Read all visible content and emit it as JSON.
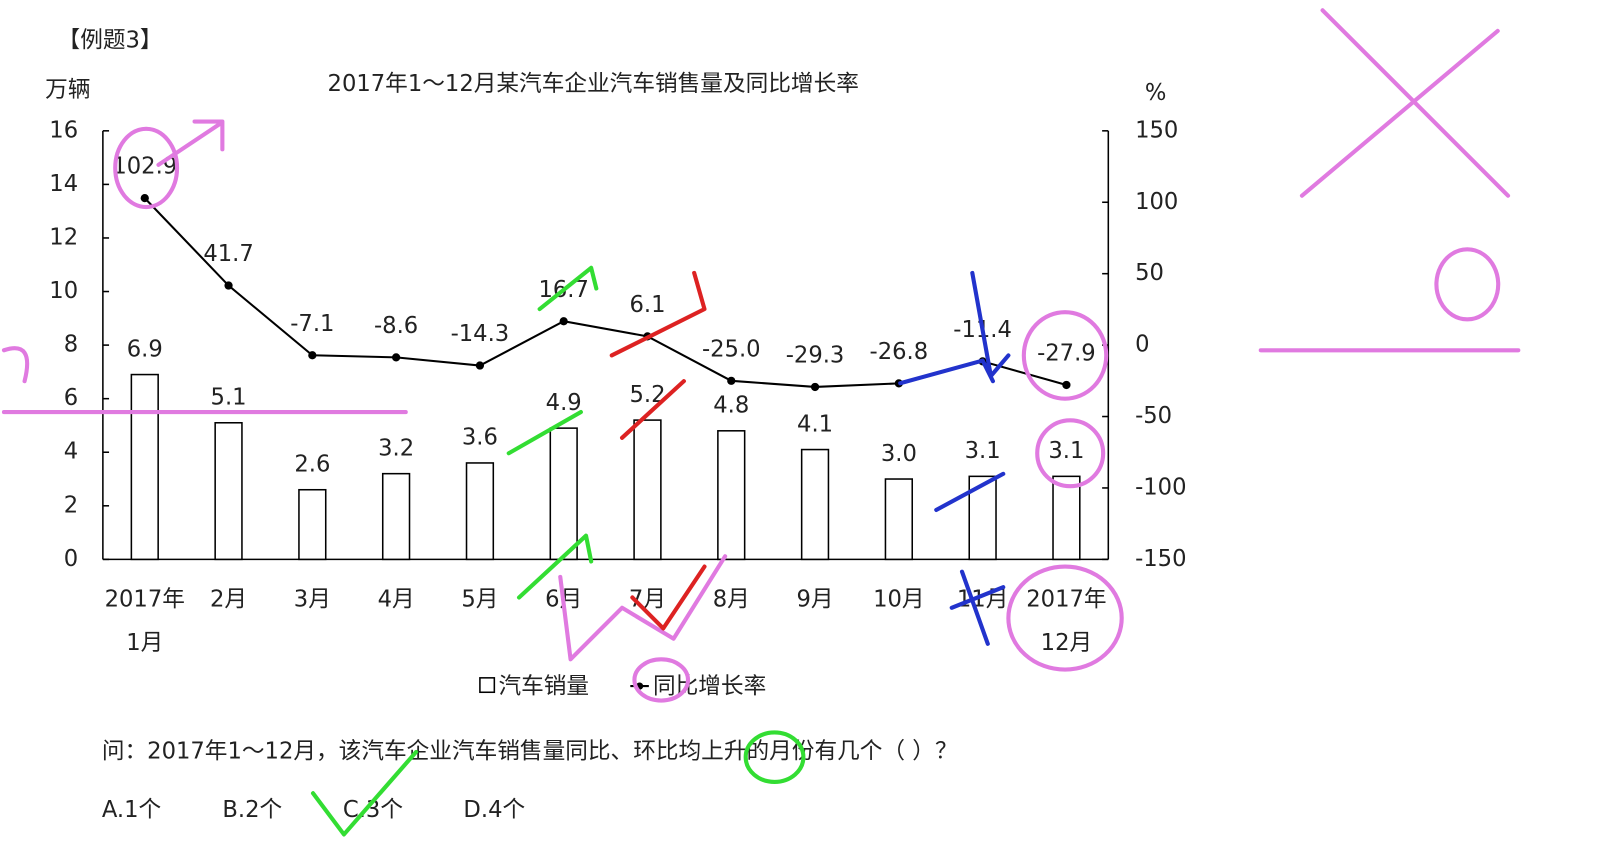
{
  "header": "【例题3】",
  "chart_data": {
    "type": "bar-line",
    "title": "2017年1～12月某汽车企业汽车销售量及同比增长率",
    "ylabel": "万辆",
    "y2label": "%",
    "categories": [
      "2017年\n1月",
      "2月",
      "3月",
      "4月",
      "5月",
      "6月",
      "7月",
      "8月",
      "9月",
      "10月",
      "11月",
      "2017年\n12月"
    ],
    "series": [
      {
        "name": "汽车销量",
        "type": "bar",
        "color": "#ffffff",
        "values": [
          6.9,
          5.1,
          2.6,
          3.2,
          3.6,
          4.9,
          5.2,
          4.8,
          4.1,
          3.0,
          3.1,
          3.1
        ],
        "value_labels": [
          "6.9",
          "5.1",
          "2.6",
          "3.2",
          "3.6",
          "4.9",
          "5.2",
          "4.8",
          "4.1",
          "3.0",
          "3.1",
          "3.1"
        ]
      },
      {
        "name": "同比增长率",
        "type": "line",
        "axis": "y2",
        "color": "#000000",
        "values": [
          102.9,
          41.7,
          -7.1,
          -8.6,
          -14.3,
          16.7,
          6.1,
          -25.0,
          -29.3,
          -26.8,
          -11.4,
          -27.9
        ],
        "value_labels": [
          "102.9",
          "41.7",
          "-7.1",
          "-8.6",
          "-14.3",
          "16.7",
          "6.1",
          "-25.0",
          "-29.3",
          "-26.8",
          "-11.4",
          "-27.9"
        ]
      }
    ],
    "ylim": [
      0,
      16
    ],
    "yticks": [
      0,
      2,
      4,
      6,
      8,
      10,
      12,
      14,
      16
    ],
    "y2lim": [
      -150,
      150
    ],
    "y2ticks": [
      -150,
      -100,
      -50,
      0,
      50,
      100,
      150
    ]
  },
  "question": "问：2017年1～12月，该汽车企业汽车销售量同比、环比均上升的月份有几个（  ）？",
  "options": [
    "A.1个",
    "B.2个",
    "C.3个",
    "D.4个"
  ]
}
